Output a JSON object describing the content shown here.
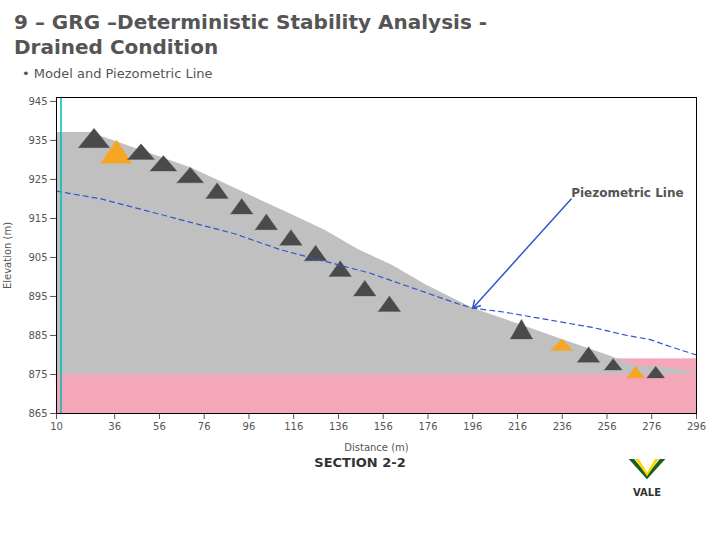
{
  "chart_data": {
    "type": "area",
    "title": "9 – GRG –Deterministic Stability Analysis -\nDrained Condition",
    "subtitle": "•  Model and Piezometric Line",
    "section_label": "SECTION 2-2",
    "text_color": "#555555",
    "xlabel": "Distance (m)",
    "ylabel": "Elevation (m)",
    "xlim": [
      10,
      296
    ],
    "ylim": [
      865,
      946
    ],
    "xticks": [
      10,
      36,
      56,
      76,
      96,
      116,
      136,
      156,
      176,
      196,
      216,
      236,
      256,
      276,
      296
    ],
    "yticks": [
      865,
      875,
      885,
      895,
      905,
      915,
      925,
      935,
      945
    ],
    "foundation": {
      "bottom": 865,
      "top": 879,
      "color": "#F4A7B9"
    },
    "embankment": {
      "x": [
        10,
        25,
        40,
        55,
        70,
        85,
        100,
        115,
        130,
        145,
        160,
        175,
        196,
        216,
        236,
        256,
        270,
        280,
        290,
        296
      ],
      "y": [
        937,
        937,
        934,
        931,
        928,
        924,
        920,
        916,
        912,
        907,
        903,
        898,
        892,
        888,
        884,
        880,
        877,
        877,
        876,
        875
      ],
      "base": 875,
      "color": "#C0C0C0"
    },
    "mounds": [
      {
        "x": [
          30,
          37,
          44
        ],
        "y": [
          929,
          935,
          929
        ],
        "color": "#F5A623"
      },
      {
        "x": [
          231,
          236,
          241
        ],
        "y": [
          881,
          884,
          881
        ],
        "color": "#F5A623"
      },
      {
        "x": [
          265,
          269,
          273
        ],
        "y": [
          874,
          877,
          874
        ],
        "color": "#F5A623"
      },
      {
        "x": [
          20,
          27,
          34
        ],
        "y": [
          933,
          938,
          933
        ],
        "color": "#4A4A4A"
      },
      {
        "x": [
          42,
          48,
          54
        ],
        "y": [
          930,
          934,
          930
        ],
        "color": "#4A4A4A"
      },
      {
        "x": [
          52,
          58,
          64
        ],
        "y": [
          927,
          931,
          927
        ],
        "color": "#4A4A4A"
      },
      {
        "x": [
          64,
          70,
          76
        ],
        "y": [
          924,
          928,
          924
        ],
        "color": "#4A4A4A"
      },
      {
        "x": [
          77,
          82,
          87
        ],
        "y": [
          920,
          924,
          920
        ],
        "color": "#4A4A4A"
      },
      {
        "x": [
          88,
          93,
          98
        ],
        "y": [
          916,
          920,
          916
        ],
        "color": "#4A4A4A"
      },
      {
        "x": [
          99,
          104,
          109
        ],
        "y": [
          912,
          916,
          912
        ],
        "color": "#4A4A4A"
      },
      {
        "x": [
          110,
          115,
          120
        ],
        "y": [
          908,
          912,
          908
        ],
        "color": "#4A4A4A"
      },
      {
        "x": [
          121,
          126,
          131
        ],
        "y": [
          904,
          908,
          904
        ],
        "color": "#4A4A4A"
      },
      {
        "x": [
          132,
          137,
          142
        ],
        "y": [
          900,
          904,
          900
        ],
        "color": "#4A4A4A"
      },
      {
        "x": [
          143,
          148,
          153
        ],
        "y": [
          895,
          899,
          895
        ],
        "color": "#4A4A4A"
      },
      {
        "x": [
          154,
          159,
          164
        ],
        "y": [
          891,
          895,
          891
        ],
        "color": "#4A4A4A"
      },
      {
        "x": [
          213,
          218,
          223
        ],
        "y": [
          884,
          889,
          884
        ],
        "color": "#4A4A4A"
      },
      {
        "x": [
          243,
          248,
          253
        ],
        "y": [
          878,
          882,
          878
        ],
        "color": "#4A4A4A"
      },
      {
        "x": [
          255,
          259,
          263
        ],
        "y": [
          876,
          879,
          876
        ],
        "color": "#4A4A4A"
      },
      {
        "x": [
          274,
          278,
          282
        ],
        "y": [
          874,
          877,
          874
        ],
        "color": "#4A4A4A"
      }
    ],
    "piezometric_line": {
      "x": [
        10,
        30,
        50,
        70,
        90,
        110,
        130,
        150,
        170,
        190,
        196,
        210,
        220,
        230,
        250,
        265,
        275,
        285,
        296
      ],
      "y": [
        922,
        920,
        917,
        914,
        911,
        907,
        904,
        901,
        897,
        893,
        892,
        891,
        890,
        889,
        887,
        885,
        884,
        882,
        880
      ],
      "color": "#3355CC",
      "line_style": "dashed"
    },
    "vertical_line": {
      "x": 12,
      "color": "#00BBBB"
    },
    "annotations": [
      {
        "text": "Piezometric Line",
        "xy": [
          196,
          892
        ],
        "xytext": [
          240,
          920
        ]
      }
    ],
    "logo": {
      "text": "VALE",
      "colors": [
        "#1B5E20",
        "#FFD600"
      ]
    }
  }
}
